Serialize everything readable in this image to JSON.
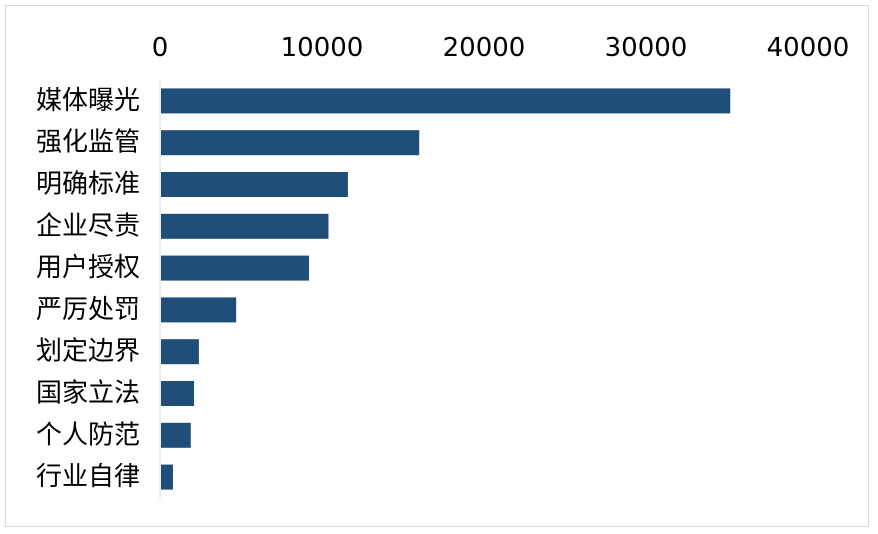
{
  "chart_data": {
    "type": "bar",
    "orientation": "horizontal",
    "categories": [
      "媒体曝光",
      "强化监管",
      "明确标准",
      "企业尽责",
      "用户授权",
      "严厉处罚",
      "划定边界",
      "国家立法",
      "个人防范",
      "行业自律"
    ],
    "values": [
      35200,
      16000,
      11600,
      10400,
      9200,
      4700,
      2400,
      2100,
      1900,
      800
    ],
    "xlim": [
      0,
      40000
    ],
    "xticks": [
      0,
      10000,
      20000,
      30000,
      40000
    ],
    "xtick_labels": [
      "0",
      "10000",
      "20000",
      "30000",
      "40000"
    ],
    "x_axis_position": "top",
    "grid": false,
    "legend": "none",
    "bar_color": "#1f4e79",
    "axis_color": "#d9d9d9"
  }
}
